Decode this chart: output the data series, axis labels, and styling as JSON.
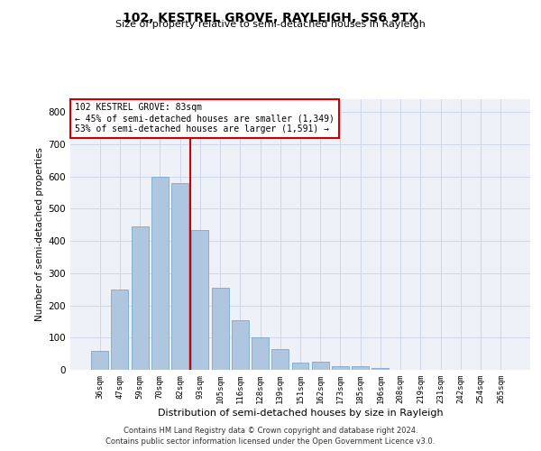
{
  "title": "102, KESTREL GROVE, RAYLEIGH, SS6 9TX",
  "subtitle": "Size of property relative to semi-detached houses in Rayleigh",
  "xlabel": "Distribution of semi-detached houses by size in Rayleigh",
  "ylabel": "Number of semi-detached properties",
  "categories": [
    "36sqm",
    "47sqm",
    "59sqm",
    "70sqm",
    "82sqm",
    "93sqm",
    "105sqm",
    "116sqm",
    "128sqm",
    "139sqm",
    "151sqm",
    "162sqm",
    "173sqm",
    "185sqm",
    "196sqm",
    "208sqm",
    "219sqm",
    "231sqm",
    "242sqm",
    "254sqm",
    "265sqm"
  ],
  "values": [
    60,
    250,
    445,
    600,
    580,
    435,
    255,
    155,
    100,
    65,
    22,
    25,
    10,
    10,
    5,
    0,
    0,
    0,
    0,
    0,
    0
  ],
  "bar_color": "#aec6df",
  "bar_edge_color": "#7aaaca",
  "property_line_label": "102 KESTREL GROVE: 83sqm",
  "smaller_pct": "45%",
  "smaller_count": "1,349",
  "larger_pct": "53%",
  "larger_count": "1,591",
  "annotation_box_color": "#ffffff",
  "annotation_box_edge_color": "#cc0000",
  "line_color": "#cc0000",
  "grid_color": "#cdd8ea",
  "bg_color": "#eef2f8",
  "ylim": [
    0,
    840
  ],
  "yticks": [
    0,
    100,
    200,
    300,
    400,
    500,
    600,
    700,
    800
  ],
  "footer_line1": "Contains HM Land Registry data © Crown copyright and database right 2024.",
  "footer_line2": "Contains public sector information licensed under the Open Government Licence v3.0."
}
